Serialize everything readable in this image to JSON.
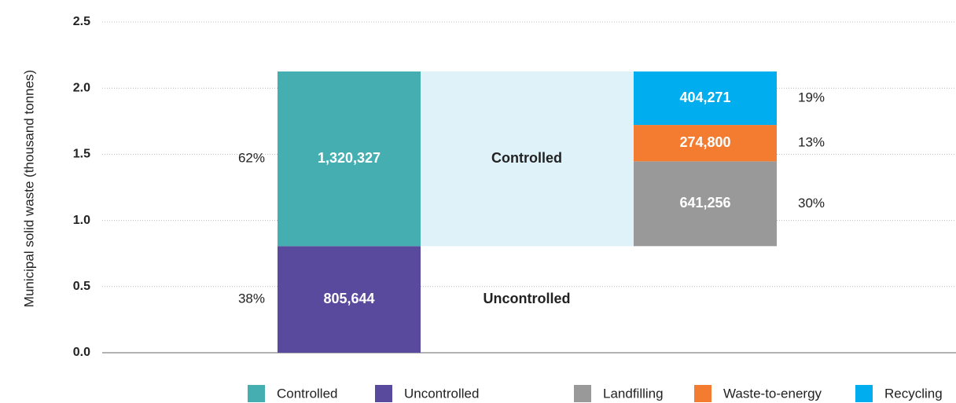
{
  "chart_data": {
    "type": "bar",
    "y_label": "Municipal solid waste (thousand tonnes)",
    "categories": [
      null,
      null
    ],
    "series": [
      {
        "name": "Controlled",
        "color": "#44aeb0",
        "values": [
          1.320327,
          null
        ],
        "value_labels": [
          "1,320,327",
          null
        ],
        "share_labels": [
          "62%",
          null
        ]
      },
      {
        "name": "Uncontrolled",
        "color": "#5a4a9e",
        "values": [
          0.805644,
          null
        ],
        "value_labels": [
          "805,644",
          null
        ],
        "share_labels": [
          "38%",
          null
        ]
      },
      {
        "name": "Landfilling",
        "color": "#999999",
        "values": [
          null,
          0.641256
        ],
        "value_labels": [
          null,
          "641,256"
        ],
        "share_labels": [
          null,
          "30%"
        ]
      },
      {
        "name": "Waste-to-energy",
        "color": "#f47c30",
        "values": [
          null,
          0.2748
        ],
        "value_labels": [
          null,
          "274,800"
        ],
        "share_labels": [
          null,
          "13%"
        ]
      },
      {
        "name": "Recycling",
        "color": "#00adef",
        "values": [
          null,
          0.404271
        ],
        "value_labels": [
          null,
          "404,271"
        ],
        "share_labels": [
          null,
          "19%"
        ]
      }
    ],
    "band_color": "#dff2f9",
    "ylim": [
      0,
      2.5
    ],
    "yticks": [
      {
        "value": 0,
        "label": "0.0"
      },
      {
        "value": 0.5,
        "label": "0.5"
      },
      {
        "value": 1,
        "label": "1.0"
      },
      {
        "value": 1.5,
        "label": "1.5"
      },
      {
        "value": 2,
        "label": "2.0"
      },
      {
        "value": 2.5,
        "label": "2.5"
      }
    ],
    "grid": true
  }
}
